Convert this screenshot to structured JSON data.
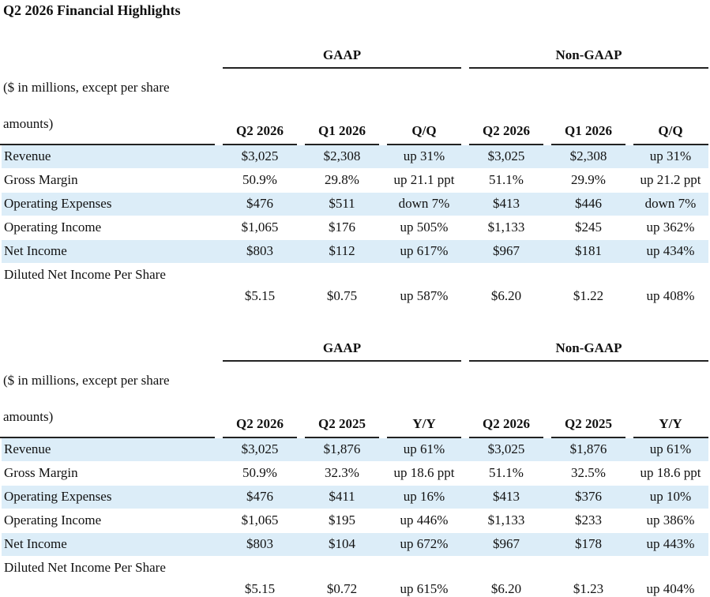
{
  "title": "Q2 2026 Financial Highlights",
  "tables": [
    {
      "groups": [
        "GAAP",
        "Non-GAAP"
      ],
      "unit_note": [
        "($ in millions, except per share",
        "amounts)"
      ],
      "columns": [
        "Q2 2026",
        "Q1 2026",
        "Q/Q",
        "Q2 2026",
        "Q1 2026",
        "Q/Q"
      ],
      "rows": [
        {
          "label": "Revenue",
          "values": [
            "$3,025",
            "$2,308",
            "up 31%",
            "$3,025",
            "$2,308",
            "up 31%"
          ]
        },
        {
          "label": "Gross Margin",
          "values": [
            "50.9%",
            "29.8%",
            "up 21.1 ppt",
            "51.1%",
            "29.9%",
            "up 21.2 ppt"
          ]
        },
        {
          "label": "Operating Expenses",
          "values": [
            "$476",
            "$511",
            "down 7%",
            "$413",
            "$446",
            "down 7%"
          ]
        },
        {
          "label": "Operating Income",
          "values": [
            "$1,065",
            "$176",
            "up 505%",
            "$1,133",
            "$245",
            "up 362%"
          ]
        },
        {
          "label": "Net Income",
          "values": [
            "$803",
            "$112",
            "up 617%",
            "$967",
            "$181",
            "up 434%"
          ]
        },
        {
          "label": "Diluted Net Income Per Share",
          "values": [
            "$5.15",
            "$0.75",
            "up 587%",
            "$6.20",
            "$1.22",
            "up 408%"
          ]
        }
      ]
    },
    {
      "groups": [
        "GAAP",
        "Non-GAAP"
      ],
      "unit_note": [
        "($ in millions, except per share",
        "amounts)"
      ],
      "columns": [
        "Q2 2026",
        "Q2 2025",
        "Y/Y",
        "Q2 2026",
        "Q2 2025",
        "Y/Y"
      ],
      "rows": [
        {
          "label": "Revenue",
          "values": [
            "$3,025",
            "$1,876",
            "up 61%",
            "$3,025",
            "$1,876",
            "up 61%"
          ]
        },
        {
          "label": "Gross Margin",
          "values": [
            "50.9%",
            "32.3%",
            "up 18.6 ppt",
            "51.1%",
            "32.5%",
            "up 18.6 ppt"
          ]
        },
        {
          "label": "Operating Expenses",
          "values": [
            "$476",
            "$411",
            "up 16%",
            "$413",
            "$376",
            "up 10%"
          ]
        },
        {
          "label": "Operating Income",
          "values": [
            "$1,065",
            "$195",
            "up 446%",
            "$1,133",
            "$233",
            "up 386%"
          ]
        },
        {
          "label": "Net Income",
          "values": [
            "$803",
            "$104",
            "up 672%",
            "$967",
            "$178",
            "up 443%"
          ]
        },
        {
          "label": "Diluted Net Income Per Share",
          "values": [
            "$5.15",
            "$0.72",
            "up 615%",
            "$6.20",
            "$1.23",
            "up 404%"
          ]
        }
      ]
    }
  ]
}
